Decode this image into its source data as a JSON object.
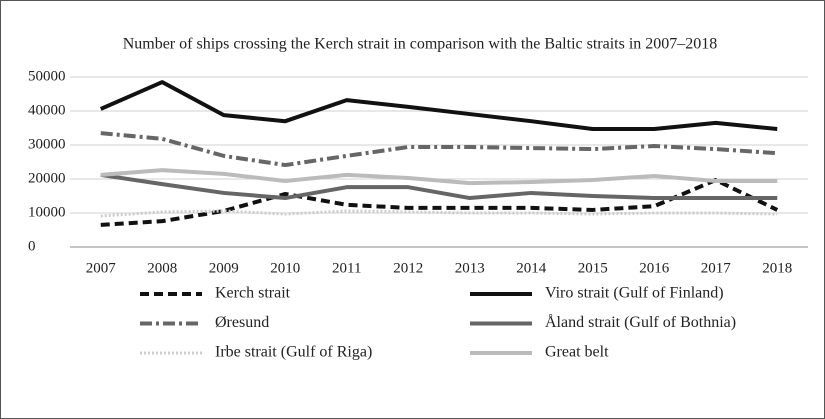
{
  "chart_data": {
    "type": "line",
    "title": "Number of ships crossing the Kerch strait in comparison with the Baltic straits in 2007–2018",
    "categories": [
      "2007",
      "2008",
      "2009",
      "2010",
      "2011",
      "2012",
      "2013",
      "2014",
      "2015",
      "2016",
      "2017",
      "2018"
    ],
    "ylim": [
      0,
      50000
    ],
    "yticks": [
      0,
      10000,
      20000,
      30000,
      40000,
      50000
    ],
    "grid": true,
    "series": [
      {
        "name": "Kerch strait",
        "color": "#111111",
        "dash": "dashed",
        "values": [
          6500,
          7600,
          10600,
          15600,
          12400,
          11500,
          11500,
          11500,
          10900,
          12000,
          19700,
          10900
        ]
      },
      {
        "name": "Viro strait (Gulf of Finland)",
        "color": "#111111",
        "dash": "solid",
        "values": [
          40600,
          48500,
          38800,
          37000,
          43200,
          41200,
          39100,
          37000,
          34700,
          34700,
          36500,
          34700
        ]
      },
      {
        "name": "Øresund",
        "color": "#666666",
        "dash": "dash-dot",
        "values": [
          33500,
          31800,
          26800,
          24100,
          26800,
          29400,
          29400,
          29100,
          28800,
          29700,
          28800,
          27600
        ]
      },
      {
        "name": "Åland strait (Gulf of Bothnia)",
        "color": "#666666",
        "dash": "solid",
        "values": [
          21200,
          18500,
          15900,
          14400,
          17600,
          17600,
          14400,
          15900,
          15000,
          14400,
          14400,
          14400
        ]
      },
      {
        "name": "Irbe strait (Gulf of Riga)",
        "color": "#cccccc",
        "dash": "dotted",
        "values": [
          9100,
          10300,
          10600,
          9700,
          10600,
          10300,
          10000,
          10000,
          9700,
          10000,
          10000,
          9700
        ]
      },
      {
        "name": "Great belt",
        "color": "#bbbbbb",
        "dash": "solid",
        "values": [
          21200,
          22600,
          21500,
          19400,
          21200,
          20300,
          18800,
          19100,
          19700,
          20900,
          19400,
          19400
        ]
      }
    ]
  }
}
